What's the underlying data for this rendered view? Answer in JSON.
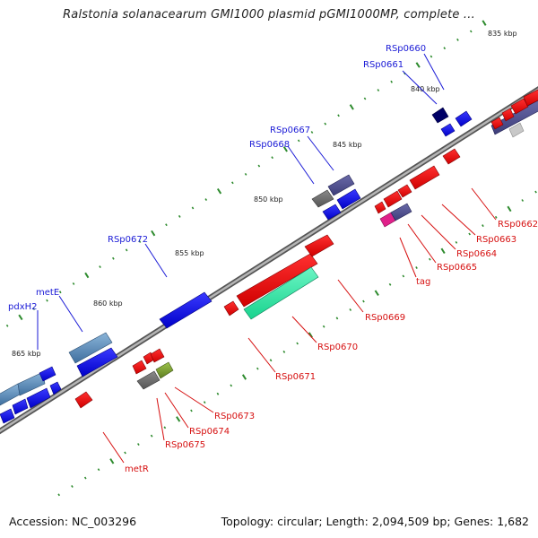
{
  "header": {
    "title": "Ralstonia solanacearum GMI1000 plasmid pGMI1000MP, complete ..."
  },
  "footer": {
    "accession": "Accession: NC_003296",
    "summary": "Topology: circular; Length: 2,094,509 bp; Genes: 1,682"
  },
  "ruler": {
    "ticks": [
      "835 kbp",
      "840 kbp",
      "845 kbp",
      "850 kbp",
      "855 kbp",
      "860 kbp",
      "865 kbp"
    ]
  },
  "colors": {
    "forward_gene": "#1010e0",
    "reverse_gene": "#e81414",
    "backbone": "#888888",
    "tick_mark": "#2e8b2e",
    "forward_label": "#1a1ad6",
    "reverse_label": "#d61010"
  },
  "genes": {
    "forward": [
      "RSp0660",
      "RSp0661",
      "RSp0667",
      "RSp0668",
      "RSp0672",
      "metE",
      "pdxH2"
    ],
    "reverse": [
      "RSp0662",
      "RSp0663",
      "RSp0664",
      "RSp0665",
      "tag",
      "RSp0669",
      "RSp0670",
      "RSp0671",
      "RSp0673",
      "RSp0674",
      "RSp0675",
      "metR"
    ]
  }
}
